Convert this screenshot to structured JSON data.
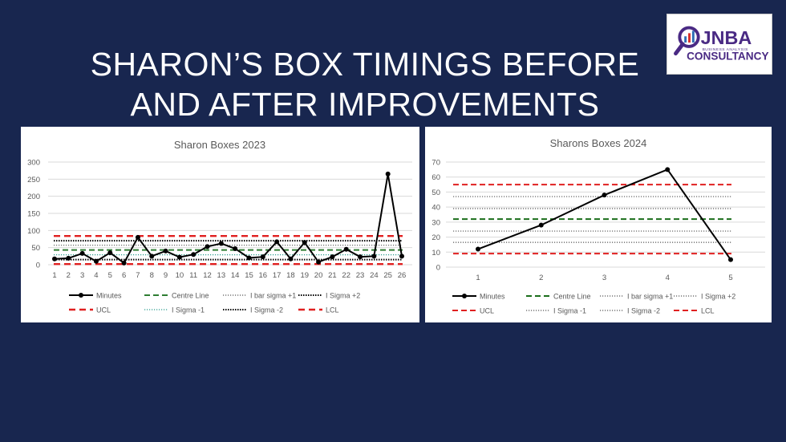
{
  "slide": {
    "title_line1": "SHARON’S BOX TIMINGS BEFORE",
    "title_line2": "AND AFTER IMPROVEMENTS",
    "background": "#18264f"
  },
  "logo": {
    "brand": "JNBA",
    "tagline": "BUSINESS ANALYSIS",
    "sub": "CONSULTANCY",
    "icon": "magnifier-bars-icon",
    "colors": {
      "purple": "#4a2a84",
      "blue": "#2f6fb5",
      "red": "#d9312b"
    }
  },
  "chart_data": [
    {
      "type": "line",
      "title": "Sharon Boxes 2023",
      "categories": [
        "1",
        "2",
        "3",
        "4",
        "5",
        "6",
        "7",
        "8",
        "9",
        "10",
        "11",
        "12",
        "13",
        "14",
        "15",
        "16",
        "17",
        "18",
        "19",
        "20",
        "21",
        "22",
        "23",
        "24",
        "25",
        "26"
      ],
      "ylim": [
        0,
        300
      ],
      "yticks": [
        "0",
        "50",
        "100",
        "150",
        "200",
        "250",
        "300"
      ],
      "grid": true,
      "legend_position": "bottom",
      "series": [
        {
          "name": "Minutes",
          "style": "solid-markers",
          "color": "#000000",
          "values": [
            17,
            19,
            33,
            10,
            35,
            5,
            80,
            25,
            40,
            22,
            30,
            53,
            62,
            47,
            20,
            23,
            67,
            17,
            65,
            8,
            23,
            45,
            23,
            25,
            265,
            25
          ]
        },
        {
          "name": "Centre Line",
          "style": "dash",
          "color": "#2e7d32",
          "constant": 43
        },
        {
          "name": "I bar sigma +1",
          "style": "dot",
          "color": "#595959",
          "constant": 57
        },
        {
          "name": "I Sigma +2",
          "style": "densedot",
          "color": "#000000",
          "constant": 70
        },
        {
          "name": "UCL",
          "style": "dash-thick",
          "color": "#e02020",
          "constant": 84
        },
        {
          "name": "I Sigma -1",
          "style": "dot",
          "color": "#2e9e8f",
          "constant": 29
        },
        {
          "name": "I Sigma -2",
          "style": "densedot",
          "color": "#000000",
          "constant": 15
        },
        {
          "name": "LCL",
          "style": "dash-thick",
          "color": "#e02020",
          "constant": 2
        }
      ]
    },
    {
      "type": "line",
      "title": "Sharons Boxes 2024",
      "categories": [
        "1",
        "2",
        "3",
        "4",
        "5"
      ],
      "ylim": [
        0,
        70
      ],
      "yticks": [
        "0",
        "10",
        "20",
        "30",
        "40",
        "50",
        "60",
        "70"
      ],
      "grid": true,
      "legend_position": "bottom",
      "series": [
        {
          "name": "Minutes",
          "style": "solid-markers",
          "color": "#000000",
          "values": [
            12,
            28,
            48,
            65,
            5
          ]
        },
        {
          "name": "Centre Line",
          "style": "dash",
          "color": "#1b6e1b",
          "constant": 32
        },
        {
          "name": "I bar sigma +1",
          "style": "dot",
          "color": "#595959",
          "constant": 39
        },
        {
          "name": "I Sigma +2",
          "style": "dot",
          "color": "#595959",
          "constant": 47
        },
        {
          "name": "UCL",
          "style": "dash",
          "color": "#e02020",
          "constant": 55
        },
        {
          "name": "I Sigma -1",
          "style": "dot",
          "color": "#595959",
          "constant": 24
        },
        {
          "name": "I Sigma -2",
          "style": "dot",
          "color": "#595959",
          "constant": 16.5
        },
        {
          "name": "LCL",
          "style": "dash",
          "color": "#e02020",
          "constant": 9
        }
      ]
    }
  ]
}
